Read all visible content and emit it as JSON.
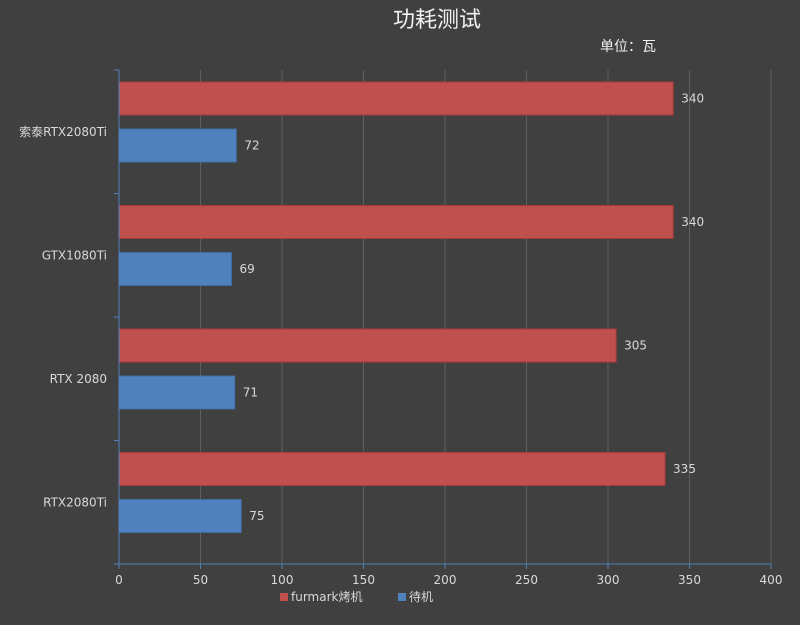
{
  "chart_data": {
    "type": "bar",
    "orientation": "horizontal",
    "title": "功耗测试",
    "unit_label": "单位：瓦",
    "categories": [
      "索泰RTX2080Ti",
      "GTX1080Ti",
      "RTX 2080",
      "RTX2080Ti"
    ],
    "series": [
      {
        "name": "furmark烤机",
        "values": [
          340,
          340,
          305,
          335
        ],
        "color": "#c0504d"
      },
      {
        "name": "待机",
        "values": [
          72,
          69,
          71,
          75
        ],
        "color": "#4f81bd"
      }
    ],
    "xlim": [
      0,
      400
    ],
    "xticks": [
      0,
      50,
      100,
      150,
      200,
      250,
      300,
      350,
      400
    ],
    "grid": true,
    "legend_position": "bottom"
  }
}
